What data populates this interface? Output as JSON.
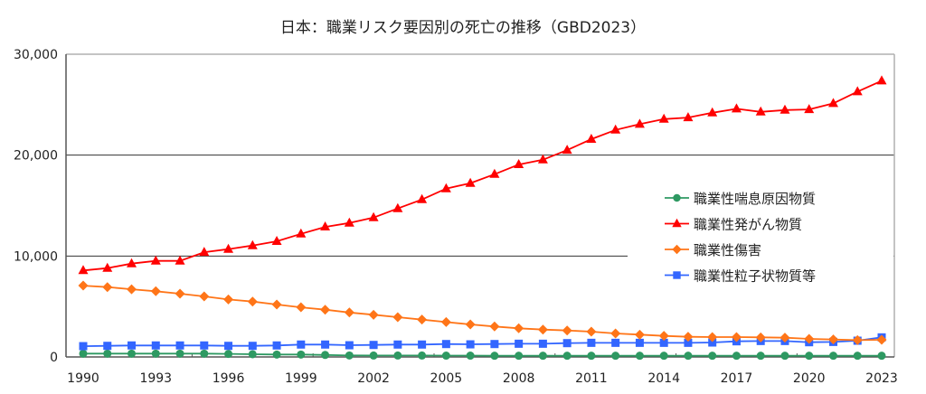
{
  "chart_data": {
    "type": "line",
    "title": "日本：職業リスク要因別の死亡の推移（GBD2023）",
    "xlabel": "",
    "ylabel": "",
    "ylim": [
      0,
      30000
    ],
    "yticks": [
      0,
      10000,
      20000,
      30000
    ],
    "ytick_labels": [
      "0",
      "10,000",
      "20,000",
      "30,000"
    ],
    "xtick_labels": [
      "1990",
      "1993",
      "1996",
      "1999",
      "2002",
      "2005",
      "2008",
      "2011",
      "2014",
      "2017",
      "2020",
      "2023"
    ],
    "grid": true,
    "legend_position": "right-middle",
    "x": [
      1990,
      1991,
      1992,
      1993,
      1994,
      1995,
      1996,
      1997,
      1998,
      1999,
      2000,
      2001,
      2002,
      2003,
      2004,
      2005,
      2006,
      2007,
      2008,
      2009,
      2010,
      2011,
      2012,
      2013,
      2014,
      2015,
      2016,
      2017,
      2018,
      2019,
      2020,
      2021,
      2022,
      2023
    ],
    "series": [
      {
        "name": "職業性喘息原因物質",
        "color": "#2e9962",
        "marker": "circle",
        "values": [
          330,
          330,
          330,
          330,
          330,
          330,
          300,
          270,
          240,
          240,
          200,
          150,
          140,
          140,
          140,
          130,
          130,
          120,
          120,
          120,
          120,
          120,
          120,
          120,
          120,
          120,
          120,
          120,
          120,
          120,
          120,
          120,
          120,
          120
        ]
      },
      {
        "name": "職業性発がん物質",
        "color": "#ff0000",
        "marker": "triangle",
        "values": [
          8570,
          8800,
          9250,
          9520,
          9520,
          10380,
          10680,
          11040,
          11460,
          12200,
          12890,
          13280,
          13810,
          14710,
          15600,
          16680,
          17220,
          18110,
          19070,
          19540,
          20500,
          21580,
          22500,
          23070,
          23570,
          23720,
          24200,
          24590,
          24290,
          24470,
          24530,
          25130,
          26290,
          27370
        ]
      },
      {
        "name": "職業性傷害",
        "color": "#ff7518",
        "marker": "diamond",
        "values": [
          7070,
          6920,
          6710,
          6510,
          6270,
          6000,
          5700,
          5490,
          5190,
          4920,
          4680,
          4410,
          4180,
          3940,
          3700,
          3460,
          3220,
          3020,
          2840,
          2710,
          2620,
          2510,
          2330,
          2210,
          2090,
          2000,
          1970,
          1970,
          1940,
          1910,
          1790,
          1730,
          1670,
          1700
        ]
      },
      {
        "name": "職業性粒子状物質等",
        "color": "#3366ff",
        "marker": "square",
        "values": [
          1070,
          1100,
          1140,
          1140,
          1140,
          1140,
          1100,
          1100,
          1140,
          1230,
          1230,
          1160,
          1190,
          1230,
          1230,
          1280,
          1250,
          1280,
          1310,
          1310,
          1370,
          1400,
          1400,
          1400,
          1400,
          1400,
          1430,
          1550,
          1580,
          1580,
          1460,
          1490,
          1610,
          1940
        ]
      }
    ]
  }
}
